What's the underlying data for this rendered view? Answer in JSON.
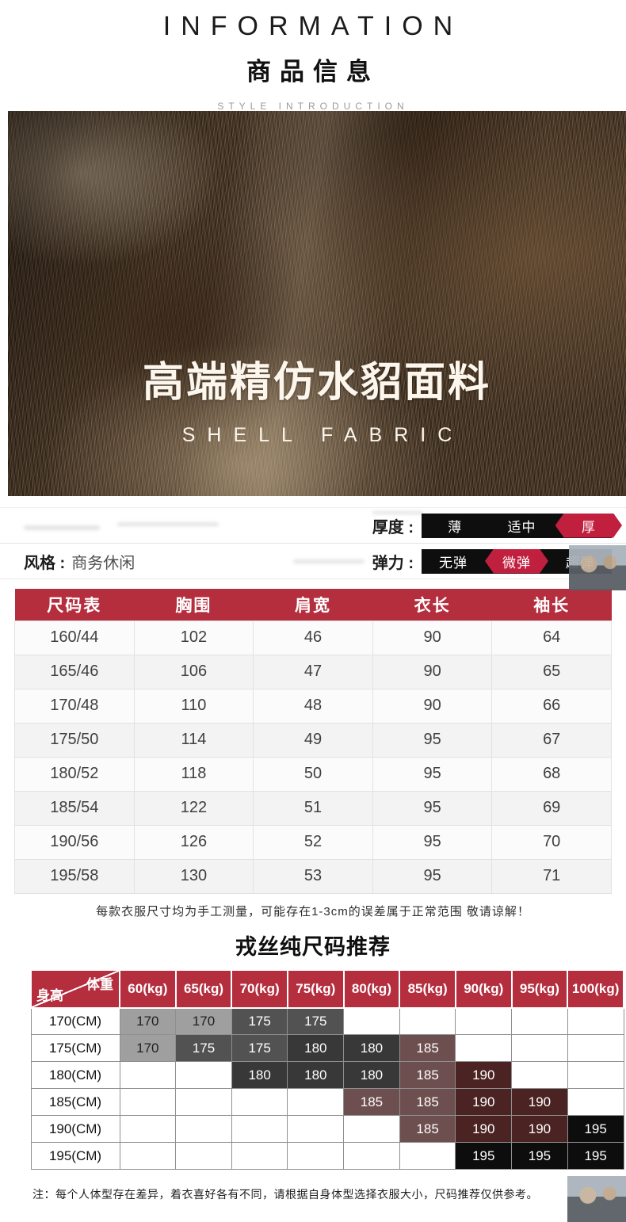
{
  "header": {
    "title_en": "INFORMATION",
    "title_cn": "商品信息",
    "subtitle": "STYLE INTRODUCTION"
  },
  "hero": {
    "headline": "高端精仿水貂面料",
    "subheadline": "SHELL FABRIC"
  },
  "attributes": {
    "thickness_label": "厚度 :",
    "thickness_options": [
      {
        "label": "薄",
        "active": false
      },
      {
        "label": "适中",
        "active": false
      },
      {
        "label": "厚",
        "active": true
      }
    ],
    "style_label": "风格 :",
    "style_value": "商务休闲",
    "elastic_label": "弹力 :",
    "elastic_options": [
      {
        "label": "无弹",
        "active": false
      },
      {
        "label": "微弹",
        "active": true
      },
      {
        "label": "超弹",
        "active": false
      }
    ]
  },
  "size_table": {
    "headers": [
      "尺码表",
      "胸围",
      "肩宽",
      "衣长",
      "袖长"
    ],
    "rows": [
      [
        "160/44",
        "102",
        "46",
        "90",
        "64"
      ],
      [
        "165/46",
        "106",
        "47",
        "90",
        "65"
      ],
      [
        "170/48",
        "110",
        "48",
        "90",
        "66"
      ],
      [
        "175/50",
        "114",
        "49",
        "95",
        "67"
      ],
      [
        "180/52",
        "118",
        "50",
        "95",
        "68"
      ],
      [
        "185/54",
        "122",
        "51",
        "95",
        "69"
      ],
      [
        "190/56",
        "126",
        "52",
        "95",
        "70"
      ],
      [
        "195/58",
        "130",
        "53",
        "95",
        "71"
      ]
    ]
  },
  "measure_note": "每款衣服尺寸均为手工测量，可能存在1-3cm的误差属于正常范围 敬请谅解！",
  "recommend_title": "戎丝纯尺码推荐",
  "recommend_table": {
    "corner_top": "体重",
    "corner_bottom": "身高",
    "weight_headers": [
      "60(kg)",
      "65(kg)",
      "70(kg)",
      "75(kg)",
      "80(kg)",
      "85(kg)",
      "90(kg)",
      "95(kg)",
      "100(kg)"
    ],
    "height_rows": [
      {
        "label": "170(CM)",
        "cells": [
          "170",
          "170",
          "175",
          "175",
          "",
          "",
          "",
          "",
          ""
        ]
      },
      {
        "label": "175(CM)",
        "cells": [
          "170",
          "175",
          "175",
          "180",
          "180",
          "185",
          "",
          "",
          ""
        ]
      },
      {
        "label": "180(CM)",
        "cells": [
          "",
          "",
          "180",
          "180",
          "180",
          "185",
          "190",
          "",
          ""
        ]
      },
      {
        "label": "185(CM)",
        "cells": [
          "",
          "",
          "",
          "",
          "185",
          "185",
          "190",
          "190",
          ""
        ]
      },
      {
        "label": "190(CM)",
        "cells": [
          "",
          "",
          "",
          "",
          "",
          "185",
          "190",
          "190",
          "195"
        ]
      },
      {
        "label": "195(CM)",
        "cells": [
          "",
          "",
          "",
          "",
          "",
          "",
          "195",
          "195",
          "195"
        ]
      }
    ],
    "cell_colors": {
      "170": {
        "bg": "#9f9f9f",
        "fg": "#1f1f1f"
      },
      "175": {
        "bg": "#525252",
        "fg": "#ffffff"
      },
      "180": {
        "bg": "#383838",
        "fg": "#ffffff"
      },
      "185": {
        "bg": "#6e4f4f",
        "fg": "#ffffff"
      },
      "190": {
        "bg": "#4c2323",
        "fg": "#ffffff"
      },
      "195": {
        "bg": "#0d0d0d",
        "fg": "#ffffff"
      }
    }
  },
  "bottom_note": "注：每个人体型存在差异，着衣喜好各有不同，请根据自身体型选择衣服大小，尺码推荐仅供参考。",
  "colors": {
    "brand_red": "#b42e3e",
    "accent_red": "#c01f3e",
    "bar_black": "#0e0e0e"
  }
}
